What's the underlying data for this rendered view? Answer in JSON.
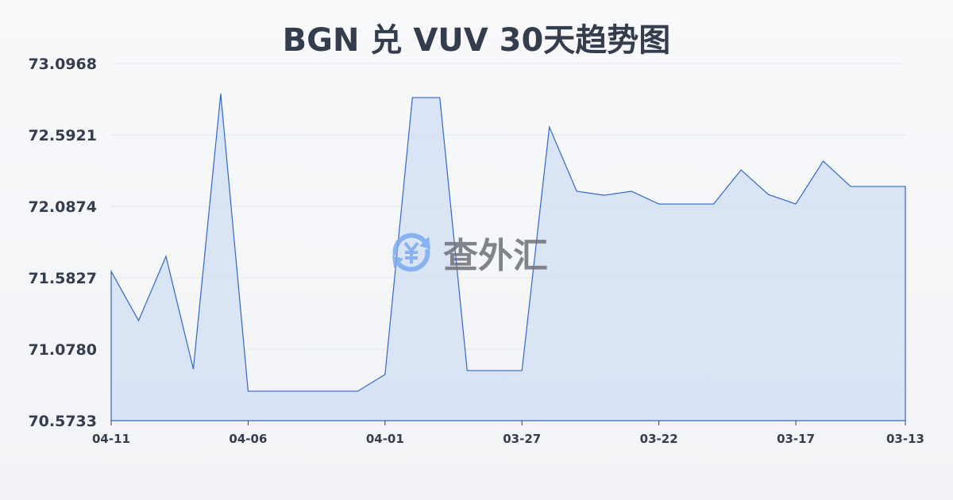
{
  "chart_data": {
    "type": "area",
    "title": "BGN 兑 VUV 30天趋势图",
    "x": [
      "04-11",
      "04-10",
      "04-09",
      "04-08",
      "04-07",
      "04-06",
      "04-05",
      "04-04",
      "04-03",
      "04-02",
      "04-01",
      "03-31",
      "03-30",
      "03-29",
      "03-28",
      "03-27",
      "03-26",
      "03-25",
      "03-24",
      "03-23",
      "03-22",
      "03-21",
      "03-20",
      "03-19",
      "03-18",
      "03-17",
      "03-16",
      "03-15",
      "03-14",
      "03-13"
    ],
    "values": [
      71.628,
      71.28,
      71.734,
      70.938,
      72.884,
      70.781,
      70.781,
      70.781,
      70.781,
      70.781,
      70.899,
      72.856,
      72.856,
      70.927,
      70.927,
      70.927,
      72.648,
      72.194,
      72.166,
      72.194,
      72.104,
      72.104,
      72.104,
      72.345,
      72.171,
      72.104,
      72.407,
      72.228,
      72.228,
      72.228
    ],
    "x_tick_labels": [
      "04-11",
      "04-06",
      "04-01",
      "03-27",
      "03-22",
      "03-17",
      "03-13"
    ],
    "y_tick_labels": [
      "73.0968",
      "72.5921",
      "72.0874",
      "71.5827",
      "71.0780",
      "70.5733"
    ],
    "ylim": [
      70.5733,
      73.0968
    ],
    "grid": true,
    "line_color": "#3366cc",
    "fill_color": "#d4e0f5"
  },
  "watermark": {
    "text": "查外汇",
    "icon": "yen-exchange-icon",
    "color": "#7aaaf0"
  }
}
